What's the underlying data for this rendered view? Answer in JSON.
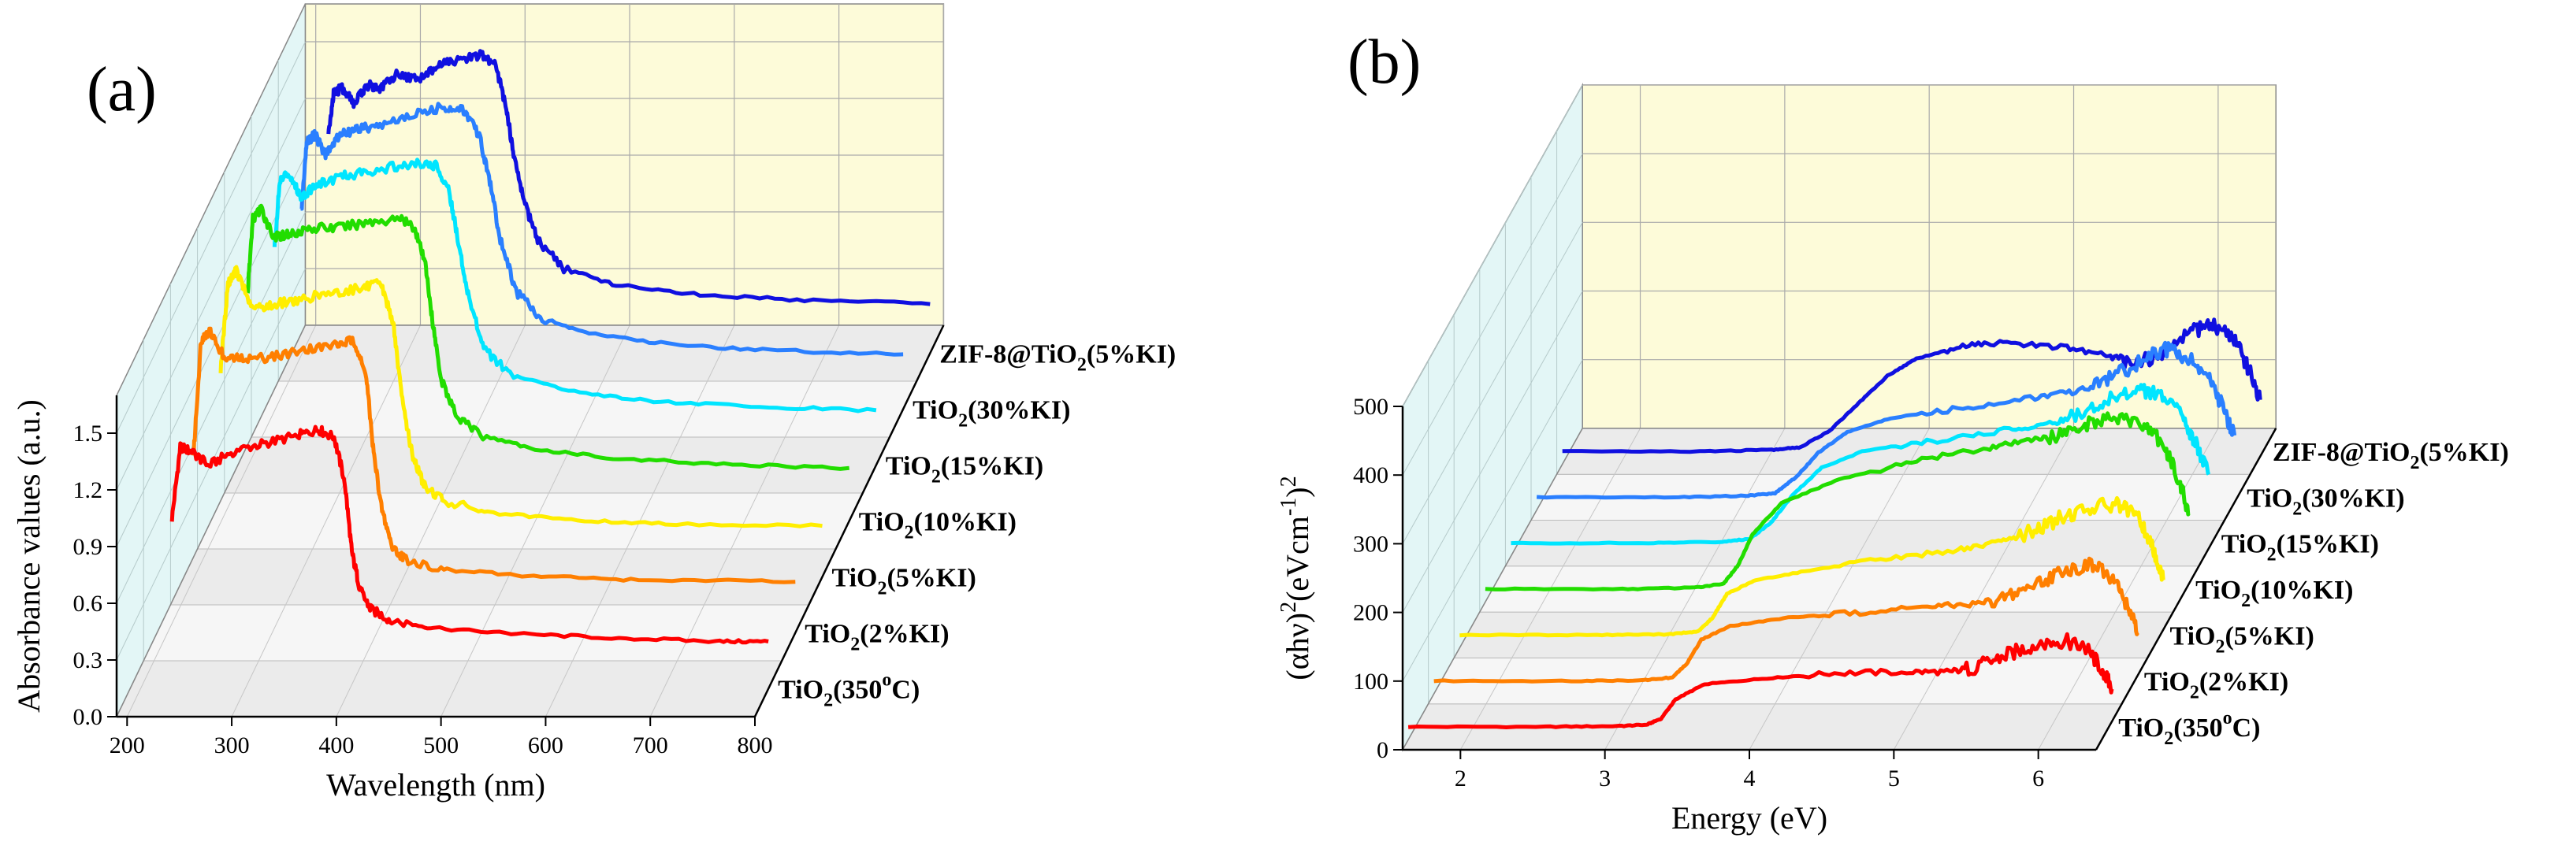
{
  "chart_data": [
    {
      "type": "line",
      "panel_label": "(a)",
      "title": "",
      "xlabel": "Wavelength (nm)",
      "ylabel": "Absorbance values (a.u.)",
      "xlim": [
        190,
        800
      ],
      "ylim": [
        0,
        1.7
      ],
      "x_ticks": [
        {
          "value": 200,
          "label": "200"
        },
        {
          "value": 300,
          "label": "300"
        },
        {
          "value": 400,
          "label": "400"
        },
        {
          "value": 500,
          "label": "500"
        },
        {
          "value": 600,
          "label": "600"
        },
        {
          "value": 700,
          "label": "700"
        },
        {
          "value": 800,
          "label": "800"
        }
      ],
      "y_ticks": [
        {
          "value": 0.0,
          "label": "0.0"
        },
        {
          "value": 0.3,
          "label": "0.3"
        },
        {
          "value": 0.6,
          "label": "0.6"
        },
        {
          "value": 0.9,
          "label": "0.9"
        },
        {
          "value": 1.2,
          "label": "1.2"
        },
        {
          "value": 1.5,
          "label": "1.5"
        }
      ],
      "legend_position": "right, beside each trace",
      "grid": true,
      "series": [
        {
          "name": "TiO<sub>2</sub>(350<sup>o</sup>C)",
          "label_main": "TiO",
          "label_sub": "2",
          "label_sup": "o",
          "label_after": "(350",
          "label_tail": "C)",
          "color": "#ff0000",
          "x": [
            230,
            238,
            250,
            265,
            290,
            320,
            350,
            370,
            385,
            395,
            402,
            410,
            420,
            440,
            480,
            560,
            650,
            750,
            800
          ],
          "y": [
            0.9,
            1.28,
            1.25,
            1.18,
            1.26,
            1.3,
            1.34,
            1.37,
            1.33,
            1.1,
            0.72,
            0.52,
            0.42,
            0.36,
            0.32,
            0.29,
            0.27,
            0.25,
            0.25
          ]
        },
        {
          "name": "TiO<sub>2</sub>(2%KI)",
          "label_main": "TiO",
          "label_sub": "2",
          "label_after": "(2%KI)",
          "color": "#ff7f00",
          "x": [
            225,
            232,
            240,
            255,
            275,
            300,
            330,
            360,
            378,
            390,
            397,
            405,
            415,
            430,
            470,
            550,
            650,
            800
          ],
          "y": [
            0.95,
            1.55,
            1.6,
            1.45,
            1.45,
            1.46,
            1.5,
            1.52,
            1.55,
            1.35,
            0.95,
            0.65,
            0.45,
            0.38,
            0.33,
            0.3,
            0.28,
            0.27
          ]
        },
        {
          "name": "TiO<sub>2</sub>(5%KI)",
          "label_main": "TiO",
          "label_sub": "2",
          "label_after": "(5%KI)",
          "color": "#ffee00",
          "x": [
            225,
            232,
            240,
            255,
            275,
            300,
            330,
            360,
            378,
            390,
            398,
            408,
            420,
            440,
            480,
            560,
            650,
            800
          ],
          "y": [
            1.1,
            1.55,
            1.62,
            1.42,
            1.44,
            1.47,
            1.5,
            1.53,
            1.55,
            1.35,
            0.95,
            0.65,
            0.48,
            0.4,
            0.34,
            0.3,
            0.28,
            0.27
          ]
        },
        {
          "name": "TiO<sub>2</sub>(10%KI)",
          "label_main": "TiO",
          "label_sub": "2",
          "label_after": "(10%KI)",
          "color": "#22dd00",
          "x": [
            225,
            230,
            238,
            250,
            265,
            285,
            310,
            340,
            370,
            385,
            395,
            402,
            410,
            425,
            450,
            500,
            580,
            680,
            800
          ],
          "y": [
            1.2,
            1.6,
            1.65,
            1.5,
            1.52,
            1.55,
            1.55,
            1.58,
            1.6,
            1.55,
            1.35,
            1.05,
            0.75,
            0.55,
            0.45,
            0.38,
            0.33,
            0.3,
            0.28
          ]
        },
        {
          "name": "TiO<sub>2</sub>(15%KI)",
          "label_main": "TiO",
          "label_sub": "2",
          "label_after": "(15%KI)",
          "color": "#00e5ff",
          "x": [
            225,
            230,
            238,
            250,
            265,
            285,
            310,
            340,
            365,
            380,
            392,
            400,
            410,
            425,
            450,
            500,
            580,
            680,
            800
          ],
          "y": [
            1.15,
            1.5,
            1.55,
            1.42,
            1.48,
            1.52,
            1.55,
            1.58,
            1.6,
            1.58,
            1.45,
            1.2,
            0.9,
            0.62,
            0.48,
            0.4,
            0.34,
            0.31,
            0.29
          ]
        },
        {
          "name": "TiO<sub>2</sub>(30%KI)",
          "label_main": "TiO",
          "label_sub": "2",
          "label_after": "(30%KI)",
          "color": "#2a7fff",
          "x": [
            225,
            230,
            238,
            248,
            262,
            278,
            300,
            330,
            360,
            380,
            395,
            405,
            415,
            430,
            455,
            500,
            580,
            680,
            800
          ],
          "y": [
            1.05,
            1.42,
            1.45,
            1.35,
            1.45,
            1.48,
            1.5,
            1.55,
            1.6,
            1.58,
            1.45,
            1.2,
            0.9,
            0.62,
            0.48,
            0.4,
            0.34,
            0.31,
            0.29
          ]
        },
        {
          "name": "ZIF-8@TiO<sub>2</sub>(5%KI)",
          "label_main": "ZIF-8@TiO",
          "label_sub": "2",
          "label_after": "(5%KI)",
          "color": "#1010e0",
          "x": [
            225,
            230,
            238,
            250,
            262,
            275,
            290,
            310,
            330,
            350,
            370,
            385,
            395,
            402,
            412,
            425,
            450,
            500,
            580,
            680,
            800
          ],
          "y": [
            1.15,
            1.38,
            1.4,
            1.32,
            1.42,
            1.4,
            1.48,
            1.45,
            1.52,
            1.55,
            1.58,
            1.52,
            1.3,
            1.05,
            0.8,
            0.6,
            0.45,
            0.36,
            0.31,
            0.28,
            0.26
          ]
        }
      ]
    },
    {
      "type": "line",
      "panel_label": "(b)",
      "title": "",
      "xlabel": "Energy (eV)",
      "ylabel": "(αhν)<sup>2</sup>(eVcm<sup>-1</sup>)<sup>2</sup>",
      "xlim": [
        1.6,
        6.4
      ],
      "ylim": [
        0,
        500
      ],
      "x_ticks": [
        {
          "value": 2,
          "label": "2"
        },
        {
          "value": 3,
          "label": "3"
        },
        {
          "value": 4,
          "label": "4"
        },
        {
          "value": 5,
          "label": "5"
        },
        {
          "value": 6,
          "label": "6"
        }
      ],
      "y_ticks": [
        {
          "value": 0,
          "label": "0"
        },
        {
          "value": 100,
          "label": "100"
        },
        {
          "value": 200,
          "label": "200"
        },
        {
          "value": 300,
          "label": "300"
        },
        {
          "value": 400,
          "label": "400"
        },
        {
          "value": 500,
          "label": "500"
        }
      ],
      "legend_position": "right, beside each trace",
      "grid": true,
      "series": [
        {
          "name": "TiO<sub>2</sub>(350<sup>o</sup>C)",
          "label_main": "TiO",
          "label_sub": "2",
          "label_sup": "o",
          "label_after": "(350",
          "label_tail": "C)",
          "color": "#ff0000",
          "x": [
            1.55,
            2.5,
            3.0,
            3.2,
            3.3,
            3.4,
            3.6,
            4.0,
            4.5,
            5.0,
            5.3,
            5.5,
            5.7,
            5.9,
            6.1,
            6.25,
            6.35,
            6.42
          ],
          "y": [
            0,
            0,
            1,
            3,
            12,
            40,
            62,
            70,
            78,
            80,
            80,
            88,
            105,
            120,
            125,
            112,
            85,
            55
          ]
        },
        {
          "name": "TiO<sub>2</sub>(2%KI)",
          "label_main": "TiO",
          "label_sub": "2",
          "label_after": "(2%KI)",
          "color": "#ff7f00",
          "x": [
            1.55,
            2.5,
            3.0,
            3.2,
            3.3,
            3.4,
            3.6,
            4.0,
            4.5,
            5.0,
            5.3,
            5.5,
            5.7,
            5.9,
            6.1,
            6.25,
            6.35,
            6.42
          ],
          "y": [
            0,
            0,
            1,
            5,
            25,
            60,
            80,
            92,
            100,
            108,
            112,
            122,
            140,
            160,
            168,
            150,
            110,
            70
          ]
        },
        {
          "name": "TiO<sub>2</sub>(5%KI)",
          "label_main": "TiO",
          "label_sub": "2",
          "label_after": "(5%KI)",
          "color": "#ffee00",
          "x": [
            1.55,
            2.5,
            3.0,
            3.2,
            3.3,
            3.4,
            3.6,
            4.0,
            4.5,
            5.0,
            5.3,
            5.5,
            5.7,
            5.9,
            6.1,
            6.25,
            6.35,
            6.42
          ],
          "y": [
            0,
            0,
            1,
            5,
            25,
            60,
            80,
            95,
            110,
            125,
            135,
            150,
            170,
            185,
            190,
            170,
            125,
            80
          ]
        },
        {
          "name": "TiO<sub>2</sub>(10%KI)",
          "label_main": "TiO",
          "label_sub": "2",
          "label_after": "(10%KI)",
          "color": "#22dd00",
          "x": [
            1.55,
            2.5,
            3.0,
            3.2,
            3.3,
            3.4,
            3.6,
            4.0,
            4.5,
            5.0,
            5.3,
            5.5,
            5.7,
            5.9,
            6.1,
            6.25,
            6.35,
            6.42
          ],
          "y": [
            0,
            0,
            2,
            8,
            35,
            80,
            125,
            160,
            185,
            205,
            215,
            225,
            240,
            250,
            240,
            210,
            160,
            110
          ]
        },
        {
          "name": "TiO<sub>2</sub>(15%KI)",
          "label_main": "TiO",
          "label_sub": "2",
          "label_after": "(15%KI)",
          "color": "#00e5ff",
          "x": [
            1.55,
            2.5,
            3.0,
            3.2,
            3.35,
            3.5,
            3.7,
            4.0,
            4.5,
            5.0,
            5.3,
            5.5,
            5.7,
            5.9,
            6.05,
            6.2,
            6.3,
            6.38
          ],
          "y": [
            0,
            0,
            2,
            6,
            30,
            70,
            110,
            135,
            150,
            165,
            175,
            190,
            210,
            225,
            215,
            185,
            140,
            100
          ]
        },
        {
          "name": "TiO<sub>2</sub>(30%KI)",
          "label_main": "TiO",
          "label_sub": "2",
          "label_after": "(30%KI)",
          "color": "#2a7fff",
          "x": [
            1.55,
            2.5,
            3.0,
            3.2,
            3.35,
            3.5,
            3.7,
            4.0,
            4.5,
            5.0,
            5.3,
            5.5,
            5.7,
            5.9,
            6.05,
            6.2,
            6.3,
            6.38
          ],
          "y": [
            0,
            0,
            2,
            6,
            30,
            65,
            95,
            115,
            130,
            145,
            155,
            170,
            195,
            215,
            205,
            175,
            130,
            90
          ]
        },
        {
          "name": "ZIF-8@TiO<sub>2</sub>(5%KI)",
          "label_main": "ZIF-8@TiO",
          "label_sub": "2",
          "label_after": "(5%KI)",
          "color": "#1010e0",
          "x": [
            1.55,
            2.5,
            3.0,
            3.2,
            3.4,
            3.6,
            3.8,
            4.0,
            4.3,
            4.6,
            5.0,
            5.3,
            5.5,
            5.7,
            5.9,
            6.05,
            6.2,
            6.3,
            6.38
          ],
          "y": [
            0,
            0,
            2,
            6,
            30,
            70,
            110,
            135,
            152,
            158,
            152,
            140,
            130,
            140,
            175,
            185,
            165,
            120,
            75
          ]
        }
      ]
    }
  ]
}
